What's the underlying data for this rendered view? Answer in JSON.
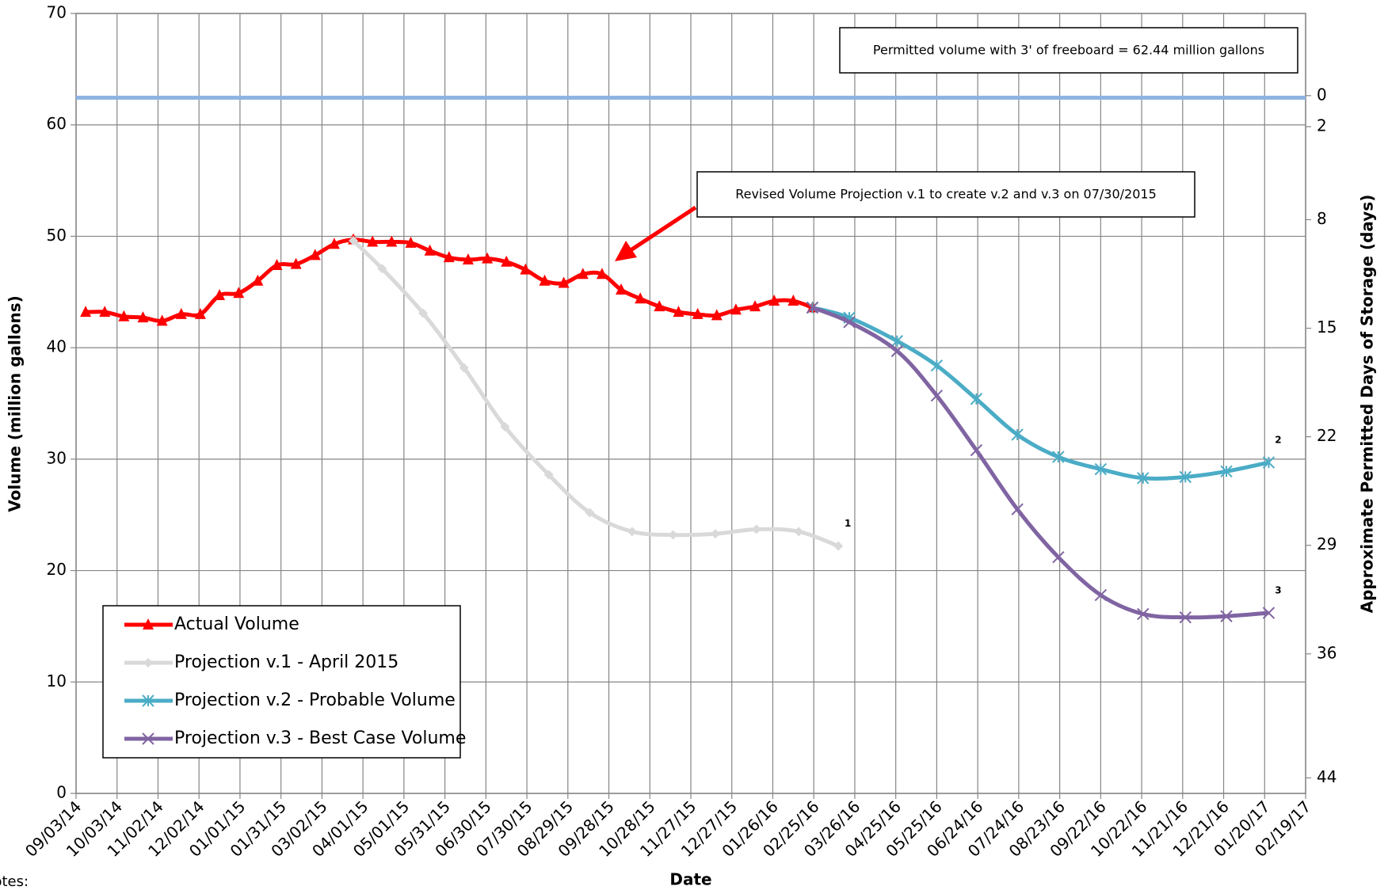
{
  "chart_data": {
    "type": "line",
    "x_label": "Date",
    "y_label": "Volume (million gallons)",
    "y2_label": "Approximate Permitted Days of Storage (days)",
    "xlim": [
      "09/03/14",
      "02/19/17"
    ],
    "xticks": [
      "09/03/14",
      "10/03/14",
      "11/02/14",
      "12/02/14",
      "01/01/15",
      "01/31/15",
      "03/02/15",
      "04/01/15",
      "05/01/15",
      "05/31/15",
      "06/30/15",
      "07/30/15",
      "08/29/15",
      "09/28/15",
      "10/28/15",
      "11/27/15",
      "12/27/15",
      "01/26/16",
      "02/25/16",
      "03/26/16",
      "04/25/16",
      "05/25/16",
      "06/24/16",
      "07/24/16",
      "08/23/16",
      "09/22/16",
      "10/22/16",
      "11/21/16",
      "12/21/16",
      "01/20/17",
      "02/19/17"
    ],
    "ylim": [
      0,
      70
    ],
    "yticks": [
      0,
      10,
      20,
      30,
      40,
      50,
      60,
      70
    ],
    "y2lim": [
      -5.3,
      45
    ],
    "y2ticks": [
      0,
      2,
      8,
      15,
      22,
      29,
      36,
      44
    ],
    "grid": true,
    "legend": "lower left",
    "reference_line": {
      "value": 62.44,
      "color": "#8db3e2"
    },
    "annotations": [
      "Permitted volume with 3' of freeboard = 62.44 million gallons",
      "Revised Volume Projection v.1 to create v.2 and v.3 on 07/30/2015"
    ],
    "notes_label": "Notes:",
    "series": [
      {
        "name": "Actual Volume",
        "color": "#ff0000",
        "marker": "triangle",
        "x": [
          "09/10/14",
          "09/24/14",
          "10/08/14",
          "10/22/14",
          "11/05/14",
          "11/19/14",
          "12/03/14",
          "12/17/14",
          "12/31/14",
          "01/14/15",
          "01/28/15",
          "02/11/15",
          "02/25/15",
          "03/11/15",
          "03/25/15",
          "04/08/15",
          "04/22/15",
          "05/06/15",
          "05/20/15",
          "06/03/15",
          "06/17/15",
          "07/01/15",
          "07/15/15",
          "07/29/15",
          "08/12/15",
          "08/26/15",
          "09/09/15",
          "09/23/15",
          "10/07/15",
          "10/21/15",
          "11/04/15",
          "11/18/15",
          "12/02/15",
          "12/16/15",
          "12/30/15",
          "01/13/16",
          "01/27/16",
          "02/10/16",
          "02/24/16"
        ],
        "values": [
          43.2,
          43.2,
          42.8,
          42.7,
          42.4,
          43.0,
          43.0,
          44.7,
          44.9,
          46.0,
          47.4,
          47.5,
          48.3,
          49.3,
          49.7,
          49.5,
          49.5,
          49.4,
          48.7,
          48.1,
          47.9,
          48.0,
          47.7,
          47.0,
          46.0,
          45.8,
          46.6,
          46.6,
          45.2,
          44.4,
          43.7,
          43.2,
          43.0,
          42.9,
          43.4,
          43.7,
          44.2,
          44.2,
          43.6
        ]
      },
      {
        "name": "Projection v.1 - April 2015",
        "color": "#d9d9d9",
        "marker": "diamond",
        "note": "1",
        "x": [
          "03/25/15",
          "04/15/15",
          "05/15/15",
          "06/14/15",
          "07/14/15",
          "08/15/15",
          "09/14/15",
          "10/15/15",
          "11/14/15",
          "12/15/15",
          "01/14/16",
          "02/14/16",
          "03/14/16"
        ],
        "values": [
          49.6,
          47.1,
          43.1,
          38.2,
          32.9,
          28.6,
          25.2,
          23.5,
          23.2,
          23.3,
          23.7,
          23.5,
          22.2
        ]
      },
      {
        "name": "Projection v.2 - Probable Volume",
        "color": "#4bacc6",
        "marker": "star",
        "note": "2",
        "x": [
          "02/24/16",
          "03/22/16",
          "04/26/16",
          "05/25/16",
          "06/23/16",
          "07/23/16",
          "08/22/16",
          "09/22/16",
          "10/23/16",
          "11/23/16",
          "12/23/16",
          "01/23/17"
        ],
        "values": [
          43.6,
          42.7,
          40.6,
          38.4,
          35.4,
          32.2,
          30.2,
          29.1,
          28.3,
          28.4,
          28.9,
          29.7
        ]
      },
      {
        "name": "Projection v.3 - Best Case Volume",
        "color": "#8064a2",
        "marker": "x",
        "note": "3",
        "x": [
          "02/24/16",
          "03/22/16",
          "04/26/16",
          "05/25/16",
          "06/23/16",
          "07/23/16",
          "08/22/16",
          "09/22/16",
          "10/23/16",
          "11/23/16",
          "12/23/16",
          "01/23/17"
        ],
        "values": [
          43.6,
          42.3,
          39.7,
          35.7,
          30.8,
          25.5,
          21.2,
          17.8,
          16.1,
          15.8,
          15.9,
          16.2
        ]
      }
    ]
  }
}
